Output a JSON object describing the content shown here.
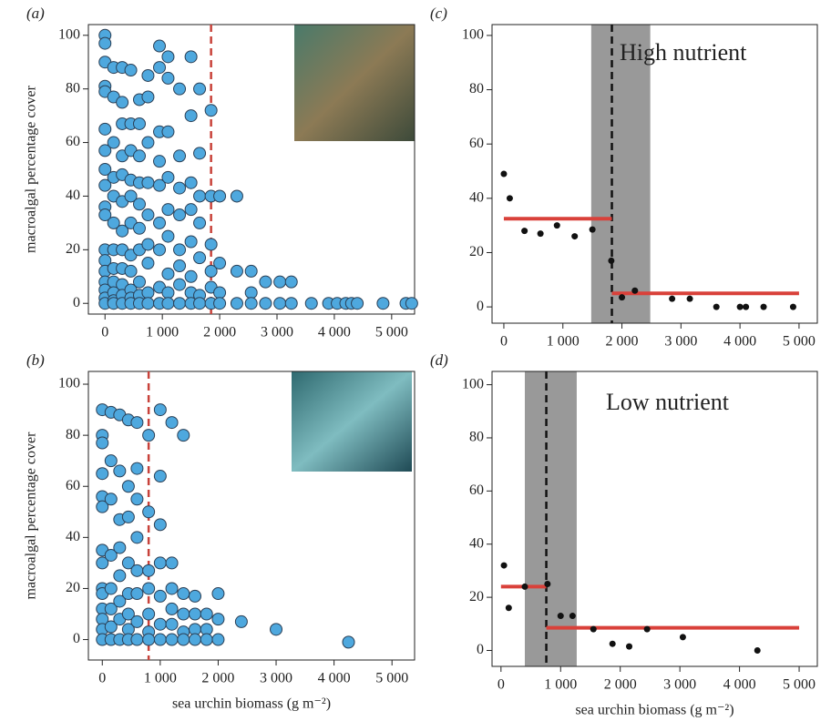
{
  "chart_data": [
    {
      "type": "scatter",
      "panel": "(a)",
      "ylabel": "macroalgal percentage cover",
      "xlim": [
        -290,
        5400
      ],
      "ylim": [
        -4,
        104
      ],
      "xticks": [
        0,
        {
          "value": 1000,
          "label": "1 000"
        },
        {
          "value": 2000,
          "label": "2 000"
        },
        {
          "value": 3000,
          "label": "3 000"
        },
        {
          "value": 4000,
          "label": "4 000"
        },
        {
          "value": 5000,
          "label": "5 000"
        }
      ],
      "yticks": [
        0,
        20,
        40,
        60,
        80,
        100
      ],
      "color": "#4ea8de",
      "threshold": 1850,
      "x": [
        0,
        0,
        0,
        0,
        0,
        0,
        0,
        0,
        0,
        0,
        0,
        0,
        0,
        0,
        0,
        0,
        0,
        0,
        150,
        150,
        150,
        150,
        150,
        150,
        150,
        150,
        150,
        150,
        150,
        150,
        300,
        300,
        300,
        300,
        300,
        300,
        300,
        300,
        300,
        300,
        300,
        300,
        450,
        450,
        450,
        450,
        450,
        450,
        450,
        450,
        450,
        450,
        450,
        600,
        600,
        600,
        600,
        600,
        600,
        600,
        600,
        600,
        600,
        750,
        750,
        750,
        750,
        750,
        750,
        750,
        750,
        750,
        950,
        950,
        950,
        950,
        950,
        950,
        950,
        950,
        950,
        1100,
        1100,
        1100,
        1100,
        1100,
        1100,
        1100,
        1100,
        1100,
        1300,
        1300,
        1300,
        1300,
        1300,
        1300,
        1300,
        1300,
        1500,
        1500,
        1500,
        1500,
        1500,
        1500,
        1500,
        1500,
        1650,
        1650,
        1650,
        1650,
        1650,
        1650,
        1650,
        1850,
        1850,
        1850,
        1850,
        1850,
        1850,
        2000,
        2000,
        2000,
        2000,
        2300,
        2300,
        2300,
        2550,
        2550,
        2550,
        2800,
        2800,
        3050,
        3050,
        3250,
        3250,
        3600,
        3900,
        4050,
        4200,
        4300,
        4400,
        4850,
        5250,
        5350
      ],
      "values": [
        100,
        97,
        90,
        81,
        79,
        65,
        57,
        50,
        44,
        36,
        33,
        20,
        16,
        12,
        8,
        5,
        2,
        0,
        88,
        77,
        60,
        47,
        40,
        30,
        20,
        13,
        8,
        4,
        1,
        0,
        88,
        75,
        67,
        55,
        48,
        38,
        27,
        20,
        13,
        7,
        3,
        0,
        87,
        67,
        57,
        46,
        40,
        30,
        18,
        12,
        5,
        2,
        0,
        76,
        67,
        55,
        45,
        37,
        28,
        20,
        8,
        3,
        0,
        85,
        77,
        60,
        45,
        33,
        22,
        15,
        4,
        0,
        96,
        88,
        64,
        53,
        44,
        30,
        20,
        6,
        0,
        92,
        84,
        64,
        47,
        35,
        25,
        11,
        4,
        0,
        80,
        55,
        43,
        33,
        20,
        14,
        7,
        0,
        92,
        70,
        45,
        35,
        23,
        10,
        4,
        0,
        80,
        56,
        40,
        30,
        17,
        3,
        0,
        72,
        40,
        22,
        12,
        6,
        0,
        40,
        15,
        4,
        0,
        40,
        12,
        0,
        12,
        4,
        0,
        8,
        0,
        8,
        0,
        8,
        0,
        0,
        0,
        0,
        0,
        0,
        0,
        0,
        0,
        0
      ]
    },
    {
      "type": "step",
      "panel": "(c)",
      "annotation": "High nutrient",
      "xlim": [
        -200,
        5310
      ],
      "ylim": [
        -6,
        104
      ],
      "xticks": [
        0,
        {
          "value": 1000,
          "label": "1 000"
        },
        {
          "value": 2000,
          "label": "2 000"
        },
        {
          "value": 3000,
          "label": "3 000"
        },
        {
          "value": 4000,
          "label": "4 000"
        },
        {
          "value": 5000,
          "label": "5 000"
        }
      ],
      "yticks": [
        0,
        20,
        40,
        60,
        80,
        100
      ],
      "color": "#111111",
      "line_color": "#d9413a",
      "band_color": "#999999",
      "threshold": 1830,
      "band": [
        1480,
        2480
      ],
      "segments": [
        {
          "x": [
            0,
            1830
          ],
          "y": 32.5
        },
        {
          "x": [
            1830,
            5000
          ],
          "y": 5
        }
      ],
      "x": [
        0,
        100,
        350,
        620,
        900,
        1200,
        1500,
        1820,
        2000,
        2220,
        2850,
        3150,
        3600,
        4000,
        4100,
        4400,
        4900
      ],
      "values": [
        49,
        40,
        28,
        27,
        30,
        26,
        28.5,
        17,
        3.5,
        6,
        3,
        3,
        0,
        0,
        0,
        0,
        0
      ]
    },
    {
      "type": "scatter",
      "panel": "(b)",
      "ylabel": "macroalgal percentage cover",
      "xlabel": "sea urchin biomass (g m⁻²)",
      "xlim": [
        -240,
        5390
      ],
      "ylim": [
        -8,
        105
      ],
      "xticks": [
        0,
        {
          "value": 1000,
          "label": "1 000"
        },
        {
          "value": 2000,
          "label": "2 000"
        },
        {
          "value": 3000,
          "label": "3 000"
        },
        {
          "value": 4000,
          "label": "4 000"
        },
        {
          "value": 5000,
          "label": "5 000"
        }
      ],
      "yticks": [
        0,
        20,
        40,
        60,
        80,
        100
      ],
      "color": "#4ea8de",
      "threshold": 800,
      "x": [
        0,
        0,
        0,
        0,
        0,
        0,
        0,
        0,
        0,
        0,
        0,
        0,
        0,
        0,
        150,
        150,
        150,
        150,
        150,
        150,
        150,
        150,
        300,
        300,
        300,
        300,
        300,
        300,
        300,
        300,
        450,
        450,
        450,
        450,
        450,
        450,
        450,
        450,
        600,
        600,
        600,
        600,
        600,
        600,
        600,
        600,
        800,
        800,
        800,
        800,
        800,
        800,
        800,
        1000,
        1000,
        1000,
        1000,
        1000,
        1000,
        1000,
        1200,
        1200,
        1200,
        1200,
        1200,
        1200,
        1400,
        1400,
        1400,
        1400,
        1400,
        1600,
        1600,
        1600,
        1600,
        1800,
        1800,
        1800,
        2000,
        2000,
        2000,
        2400,
        3000,
        4250
      ],
      "values": [
        90,
        80,
        77,
        65,
        56,
        52,
        35,
        30,
        20,
        18,
        12,
        8,
        4,
        0,
        89,
        70,
        55,
        33,
        20,
        12,
        5,
        0,
        88,
        66,
        47,
        36,
        25,
        15,
        8,
        0,
        86,
        60,
        48,
        30,
        18,
        10,
        4,
        0,
        85,
        67,
        55,
        40,
        27,
        18,
        7,
        0,
        80,
        50,
        27,
        20,
        10,
        3,
        0,
        90,
        64,
        45,
        30,
        17,
        6,
        0,
        85,
        30,
        20,
        12,
        6,
        0,
        80,
        18,
        10,
        3,
        0,
        17,
        10,
        4,
        0,
        10,
        4,
        0,
        18,
        8,
        0,
        7,
        4,
        -1
      ]
    },
    {
      "type": "step",
      "panel": "(d)",
      "annotation": "Low nutrient",
      "xlabel": "sea urchin biomass (g m⁻²)",
      "xlim": [
        -150,
        5305
      ],
      "ylim": [
        -6,
        105
      ],
      "xticks": [
        0,
        {
          "value": 1000,
          "label": "1 000"
        },
        {
          "value": 2000,
          "label": "2 000"
        },
        {
          "value": 3000,
          "label": "3 000"
        },
        {
          "value": 4000,
          "label": "4 000"
        },
        {
          "value": 5000,
          "label": "5 000"
        }
      ],
      "yticks": [
        0,
        20,
        40,
        60,
        80,
        100
      ],
      "color": "#111111",
      "line_color": "#d9413a",
      "band_color": "#999999",
      "threshold": 760,
      "band": [
        400,
        1270
      ],
      "segments": [
        {
          "x": [
            0,
            760
          ],
          "y": 24
        },
        {
          "x": [
            760,
            5000
          ],
          "y": 8.5
        }
      ],
      "x": [
        50,
        130,
        400,
        780,
        1000,
        1200,
        1550,
        1870,
        2150,
        2450,
        3050,
        4300
      ],
      "values": [
        32,
        16,
        24,
        25,
        13,
        13,
        8,
        2.5,
        1.5,
        8,
        5,
        0
      ]
    }
  ]
}
